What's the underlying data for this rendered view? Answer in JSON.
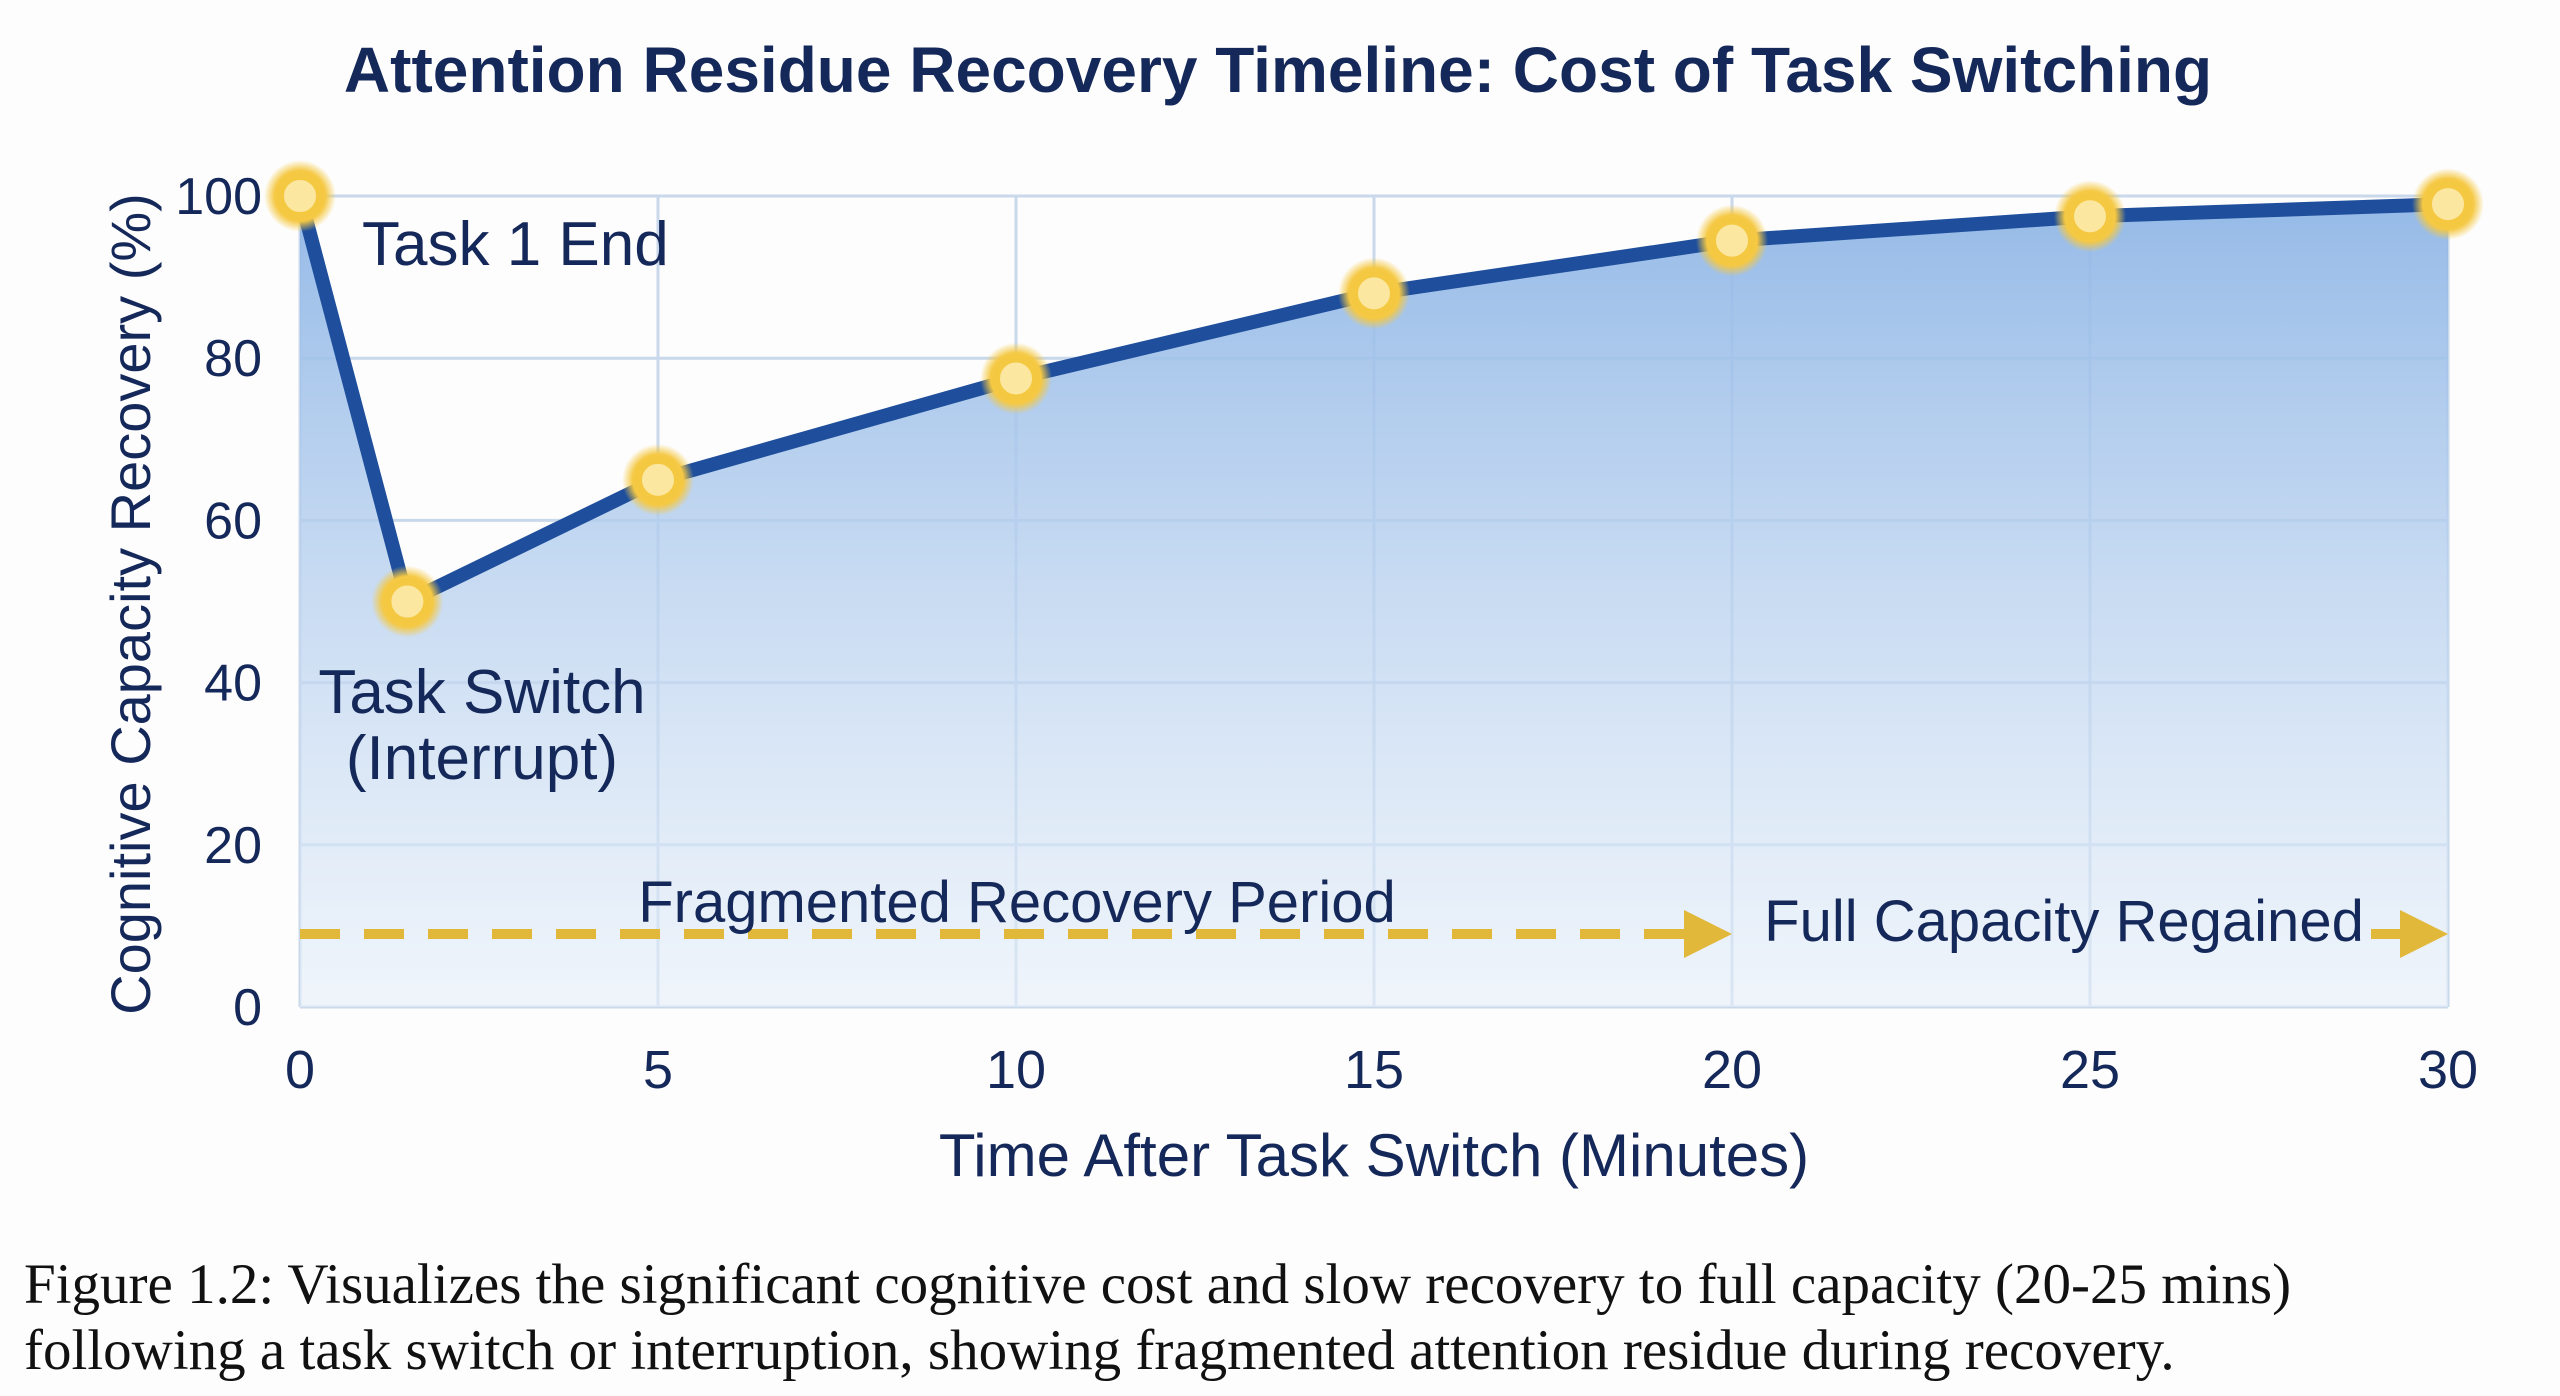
{
  "chart_data": {
    "type": "line",
    "title": "Attention Residue Recovery Timeline: Cost of Task Switching",
    "xlabel": "Time After Task Switch (Minutes)",
    "ylabel": "Cognitive Capacity Recovery (%)",
    "x": [
      0,
      1.5,
      5,
      10,
      15,
      20,
      25,
      30
    ],
    "series": [
      {
        "name": "Cognitive Capacity",
        "values": [
          100,
          50,
          65,
          77.5,
          88,
          94.5,
          97.5,
          99
        ]
      }
    ],
    "xlim": [
      0,
      30
    ],
    "ylim": [
      0,
      100
    ],
    "xticks": [
      "0",
      "5",
      "10",
      "15",
      "20",
      "25",
      "30"
    ],
    "yticks": [
      "0",
      "20",
      "40",
      "60",
      "80",
      "100"
    ],
    "grid": true,
    "annotations": {
      "task_end": "Task 1 End",
      "task_switch": "Task Switch",
      "interrupt": "(Interrupt)",
      "fragmented": "Fragmented Recovery Period",
      "full": "Full Capacity Regained"
    },
    "fragmented_range": [
      0,
      20
    ],
    "full_range": [
      20,
      30
    ],
    "colors": {
      "line": "#1f4f9c",
      "marker": "#f5c842",
      "fill": "#a9c8ec",
      "text": "#15285a",
      "arrow": "#e2b83a"
    }
  },
  "caption": {
    "line1": "Figure 1.2: Visualizes the significant cognitive cost and slow recovery to full capacity (20-25 mins)",
    "line2": "following a task switch or interruption, showing fragmented attention residue during recovery."
  }
}
